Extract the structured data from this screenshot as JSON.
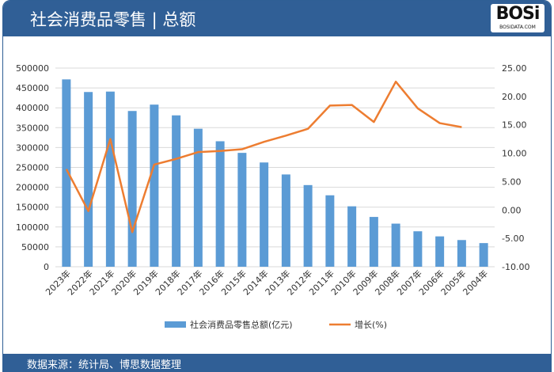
{
  "header": {
    "title": "社会消费品零售 | 总额",
    "logo_text": "BOSi",
    "logo_sub": "BOSIDATA.COM"
  },
  "footer": {
    "source": "数据来源：统计局、博思数据整理"
  },
  "colors": {
    "bar": "#5b9bd5",
    "line": "#ed7d31",
    "header": "#305f96"
  },
  "chart_data": {
    "type": "bar+line",
    "categories": [
      "2023年",
      "2022年",
      "2021年",
      "2020年",
      "2019年",
      "2018年",
      "2017年",
      "2016年",
      "2015年",
      "2014年",
      "2013年",
      "2012年",
      "2011年",
      "2010年",
      "2009年",
      "2008年",
      "2007年",
      "2006年",
      "2005年",
      "2004年"
    ],
    "series": [
      {
        "name": "社会消费品零售总额(亿元)",
        "type": "bar",
        "axis": "left",
        "values": [
          471495,
          439733,
          440823,
          391981,
          408017,
          380987,
          347327,
          315806,
          286588,
          262394,
          232253,
          205517,
          179804,
          152083,
          125343,
          108488,
          89210,
          76410,
          67177,
          59501
        ]
      },
      {
        "name": "增长(%)",
        "type": "line",
        "axis": "right",
        "values": [
          7.2,
          -0.2,
          12.5,
          -3.9,
          8.0,
          9.0,
          10.2,
          10.4,
          10.7,
          12.0,
          13.1,
          14.3,
          18.4,
          18.5,
          15.5,
          22.6,
          17.9,
          15.3,
          14.6,
          null
        ]
      }
    ],
    "left_axis": {
      "ylim": [
        0,
        500000
      ],
      "ticks": [
        "0",
        "50000",
        "100000",
        "150000",
        "200000",
        "250000",
        "300000",
        "350000",
        "400000",
        "450000",
        "500000"
      ]
    },
    "right_axis": {
      "ylim": [
        -10,
        25
      ],
      "ticks": [
        "-10.00",
        "-5.00",
        "0.00",
        "5.00",
        "10.00",
        "15.00",
        "20.00",
        "25.00"
      ]
    },
    "grid": true,
    "legend": "bottom"
  }
}
